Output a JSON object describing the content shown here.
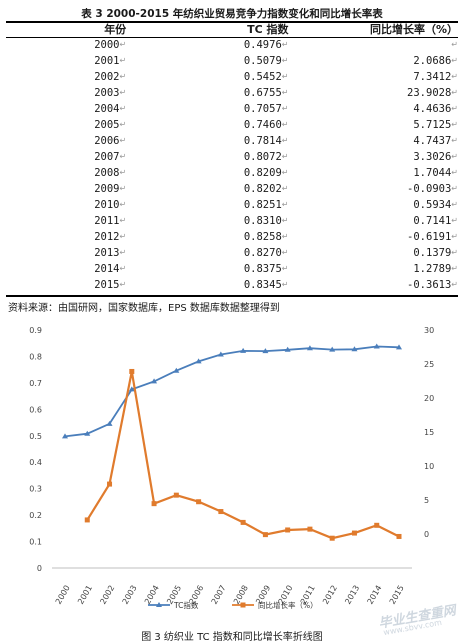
{
  "table": {
    "title": "表 3 2000-2015 年纺织业贸易竞争力指数变化和同比增长率表",
    "headers": [
      "年份",
      "TC 指数",
      "同比增长率（%）"
    ],
    "rows": [
      [
        "2000",
        "0.4976",
        ""
      ],
      [
        "2001",
        "0.5079",
        "2.0686"
      ],
      [
        "2002",
        "0.5452",
        "7.3412"
      ],
      [
        "2003",
        "0.6755",
        "23.9028"
      ],
      [
        "2004",
        "0.7057",
        "4.4636"
      ],
      [
        "2005",
        "0.7460",
        "5.7125"
      ],
      [
        "2006",
        "0.7814",
        "4.7437"
      ],
      [
        "2007",
        "0.8072",
        "3.3026"
      ],
      [
        "2008",
        "0.8209",
        "1.7044"
      ],
      [
        "2009",
        "0.8202",
        "-0.0903"
      ],
      [
        "2010",
        "0.8251",
        "0.5934"
      ],
      [
        "2011",
        "0.8310",
        "0.7141"
      ],
      [
        "2012",
        "0.8258",
        "-0.6191"
      ],
      [
        "2013",
        "0.8270",
        "0.1379"
      ],
      [
        "2014",
        "0.8375",
        "1.2789"
      ],
      [
        "2015",
        "0.8345",
        "-0.3613"
      ]
    ]
  },
  "source_note": "资料来源：由国研网，国家数据库，EPS 数据库数据整理得到",
  "chart_data": {
    "type": "line",
    "title": "",
    "xlabel": "",
    "ylabel": "",
    "categories": [
      "2000",
      "2001",
      "2002",
      "2003",
      "2004",
      "2005",
      "2006",
      "2007",
      "2008",
      "2009",
      "2010",
      "2011",
      "2012",
      "2013",
      "2014",
      "2015"
    ],
    "y_left": {
      "ylim": [
        0,
        0.9
      ],
      "ticks": [
        "0",
        "0.1",
        "0.2",
        "0.3",
        "0.4",
        "0.5",
        "0.6",
        "0.7",
        "0.8",
        "0.9"
      ]
    },
    "y_right": {
      "ylim": [
        -5,
        30
      ],
      "ticks": [
        "0",
        "5",
        "10",
        "15",
        "20",
        "25",
        "30"
      ]
    },
    "series": [
      {
        "name": "TC指数",
        "axis": "left",
        "color": "#4a7ebb",
        "marker": "triangle",
        "values": [
          0.4976,
          0.5079,
          0.5452,
          0.6755,
          0.7057,
          0.746,
          0.7814,
          0.8072,
          0.8209,
          0.8202,
          0.8251,
          0.831,
          0.8258,
          0.827,
          0.8375,
          0.8345
        ]
      },
      {
        "name": "同比增长率（%）",
        "axis": "right",
        "color": "#e07b2d",
        "marker": "square",
        "values": [
          null,
          2.0686,
          7.3412,
          23.9028,
          4.4636,
          5.7125,
          4.7437,
          3.3026,
          1.7044,
          -0.0903,
          0.5934,
          0.7141,
          -0.6191,
          0.1379,
          1.2789,
          -0.3613
        ]
      }
    ],
    "legend": "bottom",
    "grid": false
  },
  "caption": "图 3 纺织业 TC 指数和同比增长率折线图",
  "watermark": {
    "text": "毕业生查重网",
    "url": "www.sbvv.com"
  }
}
